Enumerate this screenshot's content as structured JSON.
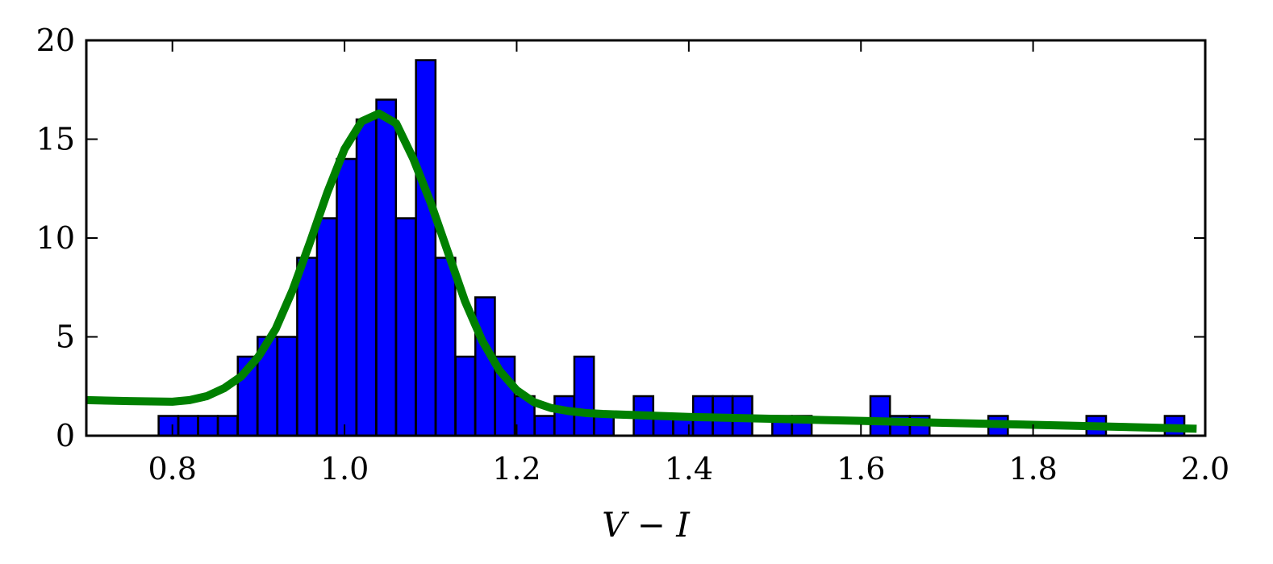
{
  "chart_data": {
    "type": "bar",
    "title": "",
    "xlabel": "V − I",
    "ylabel": "",
    "xlim": [
      0.7,
      2.0
    ],
    "ylim": [
      0,
      20
    ],
    "grid": false,
    "xticks": [
      0.8,
      1.0,
      1.2,
      1.4,
      1.6,
      1.8,
      2.0
    ],
    "xtick_labels": [
      "0.8",
      "1.0",
      "1.2",
      "1.4",
      "1.6",
      "1.8",
      "2.0"
    ],
    "yticks": [
      0,
      5,
      10,
      15,
      20
    ],
    "ytick_labels": [
      "0",
      "5",
      "10",
      "15",
      "20"
    ],
    "bin_width": 0.0227,
    "bars": [
      {
        "x": 0.784,
        "height": 1
      },
      {
        "x": 0.807,
        "height": 1
      },
      {
        "x": 0.83,
        "height": 1
      },
      {
        "x": 0.853,
        "height": 1
      },
      {
        "x": 0.876,
        "height": 4
      },
      {
        "x": 0.899,
        "height": 5
      },
      {
        "x": 0.922,
        "height": 5
      },
      {
        "x": 0.945,
        "height": 9
      },
      {
        "x": 0.968,
        "height": 11
      },
      {
        "x": 0.991,
        "height": 14
      },
      {
        "x": 1.014,
        "height": 16
      },
      {
        "x": 1.037,
        "height": 17
      },
      {
        "x": 1.06,
        "height": 11
      },
      {
        "x": 1.083,
        "height": 19
      },
      {
        "x": 1.106,
        "height": 9
      },
      {
        "x": 1.129,
        "height": 4
      },
      {
        "x": 1.152,
        "height": 7
      },
      {
        "x": 1.175,
        "height": 4
      },
      {
        "x": 1.198,
        "height": 2
      },
      {
        "x": 1.221,
        "height": 1
      },
      {
        "x": 1.244,
        "height": 2
      },
      {
        "x": 1.267,
        "height": 4
      },
      {
        "x": 1.29,
        "height": 1
      },
      {
        "x": 1.336,
        "height": 2
      },
      {
        "x": 1.359,
        "height": 1
      },
      {
        "x": 1.382,
        "height": 1
      },
      {
        "x": 1.405,
        "height": 2
      },
      {
        "x": 1.428,
        "height": 2
      },
      {
        "x": 1.451,
        "height": 2
      },
      {
        "x": 1.497,
        "height": 1
      },
      {
        "x": 1.52,
        "height": 1
      },
      {
        "x": 1.611,
        "height": 2
      },
      {
        "x": 1.634,
        "height": 1
      },
      {
        "x": 1.657,
        "height": 1
      },
      {
        "x": 1.748,
        "height": 1
      },
      {
        "x": 1.862,
        "height": 1
      },
      {
        "x": 1.953,
        "height": 1
      }
    ],
    "series": [
      {
        "type": "line",
        "x": [
          0.7,
          0.75,
          0.8,
          0.82,
          0.84,
          0.86,
          0.88,
          0.9,
          0.92,
          0.94,
          0.96,
          0.98,
          1.0,
          1.02,
          1.04,
          1.06,
          1.08,
          1.1,
          1.12,
          1.14,
          1.16,
          1.18,
          1.2,
          1.22,
          1.24,
          1.26,
          1.28,
          1.3,
          1.4,
          1.5,
          1.6,
          1.7,
          1.8,
          1.9,
          1.99
        ],
        "y": [
          1.8,
          1.75,
          1.72,
          1.8,
          2.0,
          2.4,
          3.0,
          4.0,
          5.4,
          7.4,
          9.8,
          12.3,
          14.5,
          15.9,
          16.3,
          15.8,
          14.0,
          11.8,
          9.3,
          6.8,
          4.8,
          3.3,
          2.3,
          1.7,
          1.4,
          1.25,
          1.15,
          1.1,
          0.95,
          0.85,
          0.75,
          0.65,
          0.55,
          0.45,
          0.35
        ]
      }
    ],
    "colors": {
      "bars": "#0000ff",
      "bar_edge": "#000000",
      "line": "#008000",
      "axes": "#000000"
    }
  }
}
